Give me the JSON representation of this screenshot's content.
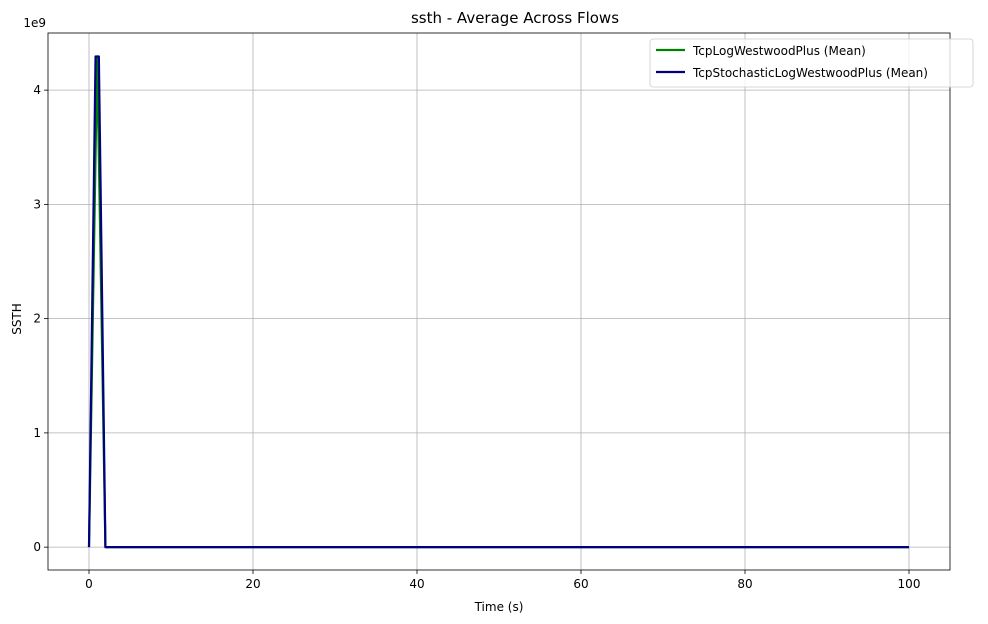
{
  "chart_data": {
    "type": "line",
    "title": "ssth - Average Across Flows",
    "xlabel": "Time (s)",
    "ylabel": "SSTH",
    "y_offset_label": "1e9",
    "xlim": [
      -5,
      105
    ],
    "ylim": [
      -200000000,
      4500000000
    ],
    "x_ticks": [
      0,
      20,
      40,
      60,
      80,
      100
    ],
    "x_tick_labels": [
      "0",
      "20",
      "40",
      "60",
      "80",
      "100"
    ],
    "y_ticks": [
      0,
      1000000000,
      2000000000,
      3000000000,
      4000000000
    ],
    "y_tick_labels": [
      "0",
      "1",
      "2",
      "3",
      "4"
    ],
    "grid": true,
    "legend_position": "upper-right",
    "series": [
      {
        "name": "TcpLogWestwoodPlus (Mean)",
        "color": "#008000",
        "x": [
          0,
          1,
          2,
          100
        ],
        "y": [
          0,
          4294967295,
          0,
          0
        ]
      },
      {
        "name": "TcpStochasticLogWestwoodPlus (Mean)",
        "color": "#000080",
        "x": [
          0,
          0.8,
          1.2,
          2,
          100
        ],
        "y": [
          0,
          4294967295,
          4294967295,
          0,
          0
        ]
      }
    ]
  }
}
